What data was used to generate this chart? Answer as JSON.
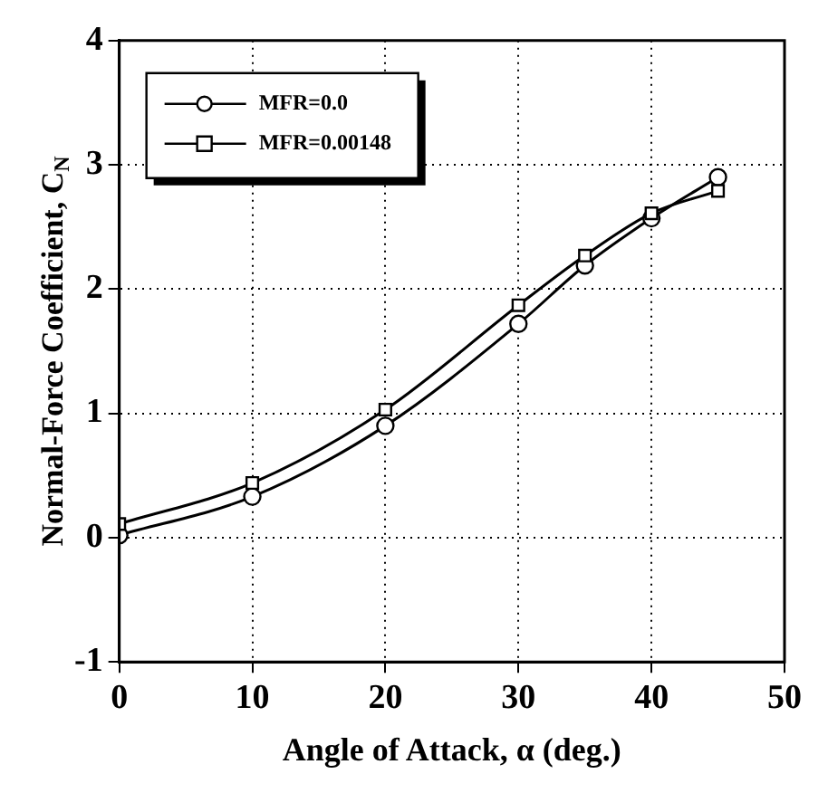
{
  "chart_data": {
    "type": "line",
    "xlabel": "Angle of Attack, α (deg.)",
    "ylabel": "Normal-Force Coefficient, C$_{N}$",
    "x": [
      0,
      10,
      20,
      30,
      35,
      40,
      45
    ],
    "series": [
      {
        "name": "MFR=0.0",
        "color": "#000000",
        "marker": "circle",
        "values": [
          0.02,
          0.33,
          0.9,
          1.72,
          2.19,
          2.57,
          2.9
        ]
      },
      {
        "name": "MFR=0.00148",
        "color": "#000000",
        "marker": "square",
        "values": [
          0.11,
          0.44,
          1.03,
          1.87,
          2.27,
          2.61,
          2.79
        ]
      }
    ],
    "xlim": [
      0,
      50
    ],
    "xticks": [
      0,
      10,
      20,
      30,
      40,
      50
    ],
    "ylim": [
      -1,
      4
    ],
    "yticks": [
      -1,
      0,
      1,
      2,
      3,
      4
    ],
    "grid": true,
    "legend": "top left",
    "line_style": "solid"
  }
}
